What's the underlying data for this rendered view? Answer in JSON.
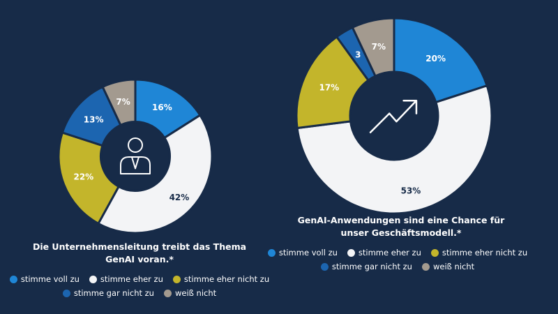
{
  "colors": {
    "background": "#172b48",
    "stimme_voll_zu": "#1f86d6",
    "stimme_eher_zu": "#f3f4f6",
    "stimme_eher_nicht_zu": "#c3b52b",
    "stimme_gar_nicht_zu": "#1c65b0",
    "weiss_nicht": "#a39a8f"
  },
  "chart_data": [
    {
      "type": "pie",
      "donut": true,
      "icon": "person-icon",
      "title": "Die Unternehmensleitung treibt das Thema GenAI voran.*",
      "title_lines": [
        "Die Unternehmensleitung treibt das Thema",
        "GenAI voran.*"
      ],
      "categories": [
        "stimme voll zu",
        "stimme eher zu",
        "stimme eher nicht zu",
        "stimme gar nicht zu",
        "weiß nicht"
      ],
      "values": [
        16,
        42,
        22,
        13,
        7
      ],
      "labels": [
        "16%",
        "42%",
        "22%",
        "13%",
        "7%"
      ],
      "legend_rows": [
        [
          0,
          1,
          2
        ],
        [
          3,
          4
        ]
      ]
    },
    {
      "type": "pie",
      "donut": true,
      "icon": "trend-up-icon",
      "title": "GenAI-Anwendungen sind eine Chance für unser Geschäftsmodell.*",
      "title_lines": [
        "GenAI-Anwendungen sind eine Chance für",
        "unser Geschäftsmodell.*"
      ],
      "categories": [
        "stimme voll zu",
        "stimme eher zu",
        "stimme eher nicht zu",
        "stimme gar nicht zu",
        "weiß nicht"
      ],
      "values": [
        20,
        53,
        17,
        3,
        7
      ],
      "labels": [
        "20%",
        "53%",
        "17%",
        "3",
        "7%"
      ],
      "legend_rows": [
        [
          0,
          1,
          2
        ],
        [
          3,
          4
        ]
      ]
    }
  ]
}
